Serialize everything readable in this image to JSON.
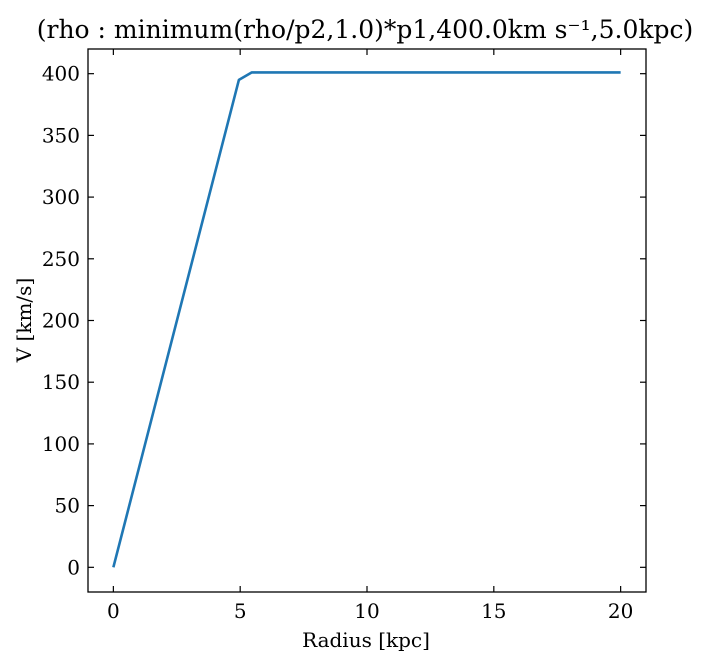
{
  "chart_data": {
    "type": "line",
    "title": "(rho : minimum(rho/p2,1.0)*p1,400.0km s⁻¹,5.0kpc)",
    "xlabel": "Radius [kpc]",
    "ylabel": "V [km/s]",
    "xlim": [
      -1,
      21
    ],
    "ylim": [
      -20,
      420
    ],
    "xticks": [
      0,
      5,
      10,
      15,
      20
    ],
    "yticks": [
      0,
      50,
      100,
      150,
      200,
      250,
      300,
      350,
      400
    ],
    "grid": false,
    "series": [
      {
        "color": "#1f77b4",
        "x": [
          0,
          4.95,
          5.45,
          20
        ],
        "y": [
          0,
          395,
          401,
          401
        ]
      }
    ]
  }
}
